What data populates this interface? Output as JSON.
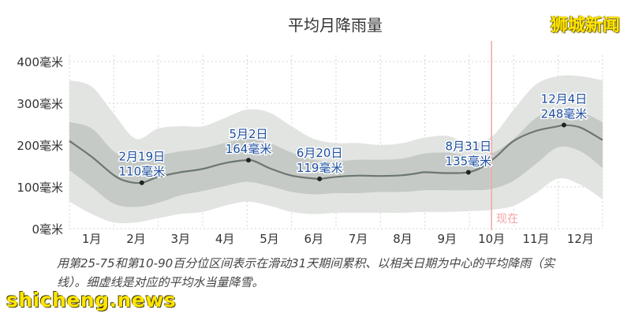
{
  "header": {
    "brand_top": "狮城新闻"
  },
  "footer": {
    "caption": "用第25-75和第10-90百分位区间表示在滑动31天期间累积、以相关日期为中心的平均降雨（实线）。细虚线是对应的平均水当量降雪。",
    "brand_bottom": "shicheng.news"
  },
  "chart_data": {
    "type": "area",
    "title": "平均月降雨量",
    "y_unit": "毫米",
    "ylim": [
      0,
      400
    ],
    "y_ticks": [
      0,
      100,
      200,
      300,
      400
    ],
    "y_tick_labels": [
      "0毫米",
      "100毫米",
      "200毫米",
      "300毫米",
      "400毫米"
    ],
    "x_domain": [
      0,
      12
    ],
    "month_labels": [
      "1月",
      "2月",
      "3月",
      "4月",
      "5月",
      "6月",
      "7月",
      "8月",
      "9月",
      "10月",
      "11月",
      "12月"
    ],
    "grid": true,
    "colors": {
      "band_outer": "#e2e4e2",
      "band_inner": "#c6cac6",
      "line": "#6b776f",
      "now": "#f4a5a8",
      "annotation": "#1e4fa0",
      "marker": "#222222",
      "grid": "#d4d4d4"
    },
    "series": [
      {
        "name": "平均降雨",
        "x": [
          0,
          0.5,
          1.0,
          1.3,
          1.63,
          2.0,
          2.5,
          3.0,
          3.5,
          4.0,
          4.2,
          4.5,
          5.0,
          5.5,
          5.63,
          6.0,
          6.5,
          7.0,
          7.5,
          7.8,
          8.0,
          8.5,
          8.98,
          9.3,
          9.6,
          10.0,
          10.5,
          11.0,
          11.13,
          11.5,
          12.0
        ],
        "y": [
          210,
          172,
          128,
          113,
          110,
          124,
          135,
          143,
          157,
          164,
          160,
          145,
          127,
          120,
          119,
          124,
          127,
          126,
          128,
          132,
          135,
          133,
          135,
          148,
          172,
          210,
          234,
          245,
          248,
          242,
          212
        ]
      }
    ],
    "bands": [
      {
        "range": "10-90",
        "x": [
          0,
          0.5,
          1.0,
          1.5,
          2.0,
          2.5,
          3.0,
          3.5,
          4.0,
          4.5,
          5.0,
          5.5,
          6.0,
          6.5,
          7.0,
          7.5,
          8.0,
          8.5,
          9.0,
          9.5,
          10.0,
          10.5,
          11.0,
          11.5,
          12.0
        ],
        "low": [
          65,
          35,
          15,
          15,
          25,
          35,
          40,
          55,
          65,
          55,
          40,
          35,
          38,
          38,
          38,
          38,
          40,
          40,
          42,
          45,
          55,
          85,
          120,
          105,
          70
        ],
        "high": [
          355,
          340,
          275,
          215,
          240,
          245,
          245,
          265,
          285,
          278,
          245,
          215,
          205,
          205,
          200,
          205,
          218,
          222,
          205,
          220,
          285,
          345,
          365,
          365,
          355
        ]
      },
      {
        "range": "25-75",
        "x": [
          0,
          0.5,
          1.0,
          1.5,
          2.0,
          2.5,
          3.0,
          3.5,
          4.0,
          4.5,
          5.0,
          5.5,
          6.0,
          6.5,
          7.0,
          7.5,
          8.0,
          8.5,
          9.0,
          9.5,
          10.0,
          10.5,
          11.0,
          11.5,
          12.0
        ],
        "low": [
          140,
          100,
          60,
          52,
          62,
          80,
          90,
          102,
          112,
          102,
          88,
          82,
          85,
          85,
          88,
          88,
          92,
          92,
          92,
          95,
          115,
          155,
          195,
          185,
          145
        ],
        "high": [
          255,
          240,
          185,
          160,
          175,
          185,
          192,
          205,
          215,
          205,
          182,
          165,
          162,
          165,
          165,
          168,
          180,
          182,
          175,
          180,
          215,
          265,
          285,
          280,
          255
        ]
      }
    ],
    "annotations": [
      {
        "x": 1.63,
        "y": 110,
        "date": "2月19日",
        "value": "110毫米"
      },
      {
        "x": 4.03,
        "y": 164,
        "date": "5月2日",
        "value": "164毫米"
      },
      {
        "x": 5.63,
        "y": 119,
        "date": "6月20日",
        "value": "119毫米"
      },
      {
        "x": 8.98,
        "y": 135,
        "date": "8月31日",
        "value": "135毫米"
      },
      {
        "x": 11.13,
        "y": 248,
        "date": "12月4日",
        "value": "248毫米"
      }
    ],
    "now_marker": {
      "x": 9.5,
      "label": "现在"
    }
  }
}
